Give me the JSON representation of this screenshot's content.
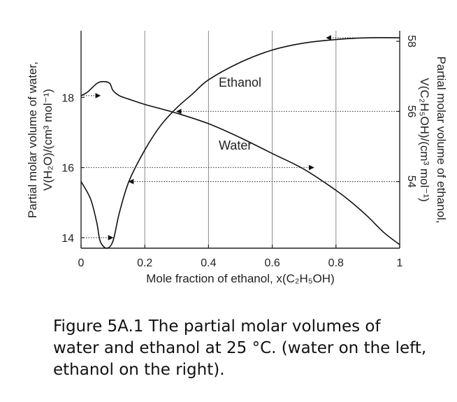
{
  "chart_data": {
    "type": "line",
    "title": "",
    "xlabel": "Mole fraction of ethanol, x(C₂H₅OH)",
    "ylabel_left": "Partial molar volume of water,",
    "ylabel_left_line2": "V(H₂O)/(cm³ mol⁻¹)",
    "ylabel_right": "Partial molar volume of ethanol,",
    "ylabel_right_line2": "V(C₂H₅OH)/(cm³ mol⁻¹)",
    "xlim": [
      0,
      1
    ],
    "ylim_left": [
      13.7,
      19.9
    ],
    "ylim_right": [
      52.1,
      58.3
    ],
    "x_ticks": [
      "0",
      "0.2",
      "0.4",
      "0.6",
      "0.8",
      "1"
    ],
    "y_left_ticks": [
      "14",
      "16",
      "18"
    ],
    "y_right_ticks": [
      "54",
      "56",
      "58"
    ],
    "grid": "vertical lines at 0.2, 0.4, 0.6, 0.8",
    "series": [
      {
        "name": "Water",
        "axis": "left",
        "color": "#111111",
        "x": [
          0.0,
          0.02,
          0.05,
          0.07,
          0.09,
          0.1,
          0.12,
          0.15,
          0.2,
          0.3,
          0.4,
          0.5,
          0.6,
          0.7,
          0.8,
          0.85,
          0.9,
          0.95,
          1.0
        ],
        "y": [
          18.05,
          18.15,
          18.4,
          18.45,
          18.4,
          18.2,
          18.05,
          17.95,
          17.8,
          17.55,
          17.25,
          16.85,
          16.4,
          15.95,
          15.35,
          15.0,
          14.6,
          14.15,
          13.8
        ]
      },
      {
        "name": "Ethanol",
        "axis": "right",
        "color": "#111111",
        "x": [
          0.0,
          0.03,
          0.05,
          0.06,
          0.08,
          0.1,
          0.12,
          0.15,
          0.2,
          0.25,
          0.3,
          0.35,
          0.4,
          0.5,
          0.6,
          0.7,
          0.8,
          0.9,
          1.0
        ],
        "y": [
          54.0,
          53.5,
          52.8,
          52.3,
          52.1,
          52.3,
          53.1,
          54.0,
          54.9,
          55.6,
          56.1,
          56.5,
          56.9,
          57.4,
          57.75,
          57.95,
          58.05,
          58.1,
          58.1
        ]
      }
    ],
    "annotations": [
      "Ethanol",
      "Water"
    ]
  },
  "caption": {
    "text": "Figure 5A.1 The partial molar volumes of water and ethanol at 25 °C. (water on the left, ethanol on the right)."
  }
}
